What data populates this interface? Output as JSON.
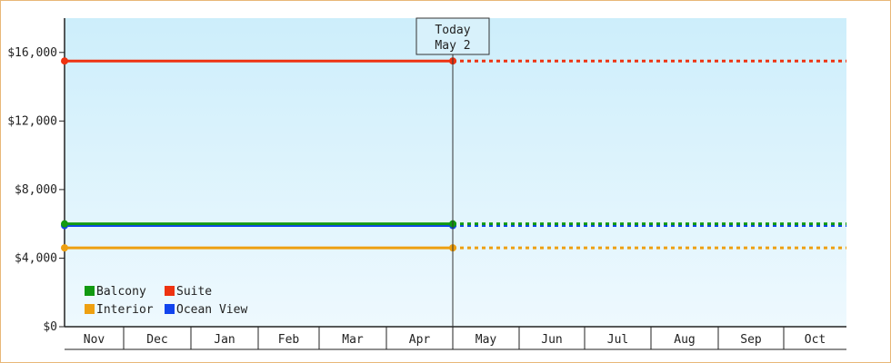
{
  "chart_data": {
    "type": "line",
    "title": "",
    "xlabel": "",
    "ylabel": "",
    "x_categories": [
      "Nov",
      "Dec",
      "Jan",
      "Feb",
      "Mar",
      "Apr",
      "May",
      "Jun",
      "Jul",
      "Aug",
      "Sep",
      "Oct"
    ],
    "y_ticks": [
      "$0",
      "$4,000",
      "$8,000",
      "$12,000",
      "$16,000"
    ],
    "ylim": [
      0,
      18000
    ],
    "grid": false,
    "legend_position": "bottom-left",
    "today_marker": {
      "line1": "Today",
      "line2": "May 2",
      "category": "May"
    },
    "series": [
      {
        "name": "Balcony",
        "color": "#119911",
        "value": 6000,
        "style": "solid-then-dashed"
      },
      {
        "name": "Suite",
        "color": "#ee3311",
        "value": 15500,
        "style": "solid-then-dashed"
      },
      {
        "name": "Interior",
        "color": "#eea011",
        "value": 4600,
        "style": "solid-then-dashed"
      },
      {
        "name": "Ocean View",
        "color": "#1144ee",
        "value": 5900,
        "style": "solid-then-dashed"
      }
    ],
    "legend": [
      {
        "name": "Balcony",
        "color": "#119911"
      },
      {
        "name": "Suite",
        "color": "#ee3311"
      },
      {
        "name": "Interior",
        "color": "#eea011"
      },
      {
        "name": "Ocean View",
        "color": "#1144ee"
      }
    ]
  }
}
